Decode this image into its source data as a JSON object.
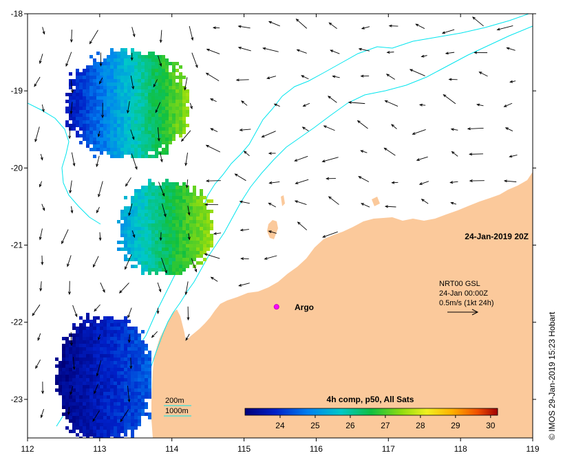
{
  "map": {
    "title_date": "24-Jan-2019 20Z",
    "axes": {
      "x_ticks": [
        "112",
        "113",
        "114",
        "115",
        "116",
        "117",
        "118",
        "119"
      ],
      "y_ticks": [
        "-18",
        "-19",
        "-20",
        "-21",
        "-22",
        "-23"
      ],
      "x_range": [
        112,
        119
      ],
      "y_range": [
        -23.5,
        -18
      ]
    },
    "legend_currents": {
      "line1": "NRT00 GSL",
      "line2": "24-Jan 00:00Z",
      "line3": "0.5m/s (1kt 24h)"
    },
    "argo": {
      "label": "Argo",
      "lon": 115.45,
      "lat": -21.8
    },
    "bathymetry": {
      "line1": "200m",
      "line2": "1000m"
    },
    "colorbar": {
      "title": "4h comp, p50, All Sats",
      "min": 23.0,
      "max": 30.2,
      "ticks": [
        "24",
        "25",
        "26",
        "27",
        "28",
        "29",
        "30"
      ]
    },
    "credit": "© IMOS 29-Jan-2019 15:23 Hobart",
    "colors": {
      "land": "#fbc99b",
      "bathy": "#00e5ee",
      "argo": "#ff00ff",
      "arrow": "#000000"
    }
  }
}
